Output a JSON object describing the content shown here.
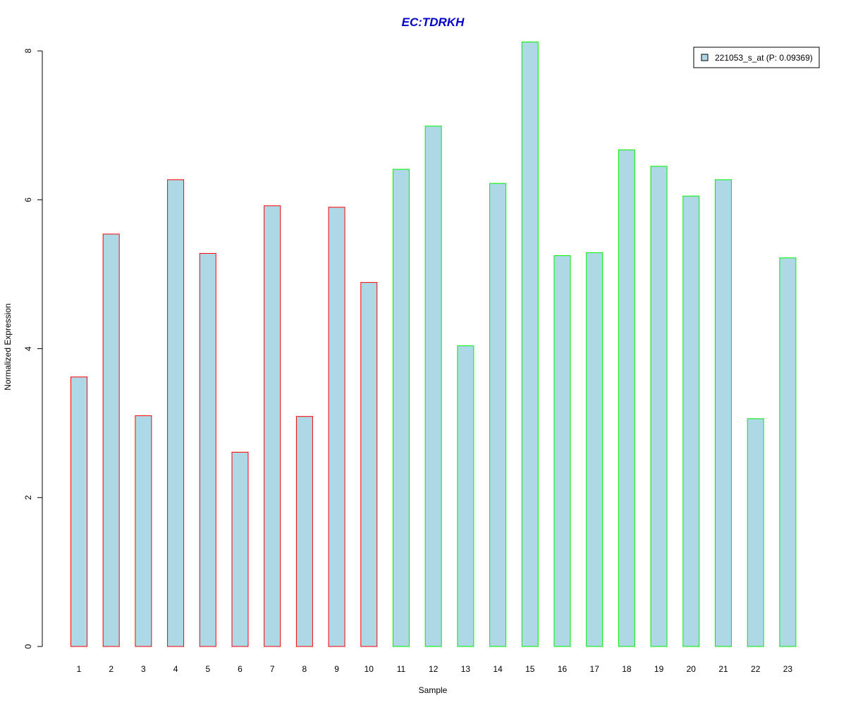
{
  "chart_data": {
    "type": "bar",
    "title": "EC:TDRKH",
    "xlabel": "Sample",
    "ylabel": "Normalized Expression",
    "categories": [
      "1",
      "2",
      "3",
      "4",
      "5",
      "6",
      "7",
      "8",
      "9",
      "10",
      "11",
      "12",
      "13",
      "14",
      "15",
      "16",
      "17",
      "18",
      "19",
      "20",
      "21",
      "22",
      "23"
    ],
    "series": [
      {
        "name": "221053_s_at (P: 0.09369)",
        "values": [
          3.62,
          5.54,
          3.1,
          6.27,
          5.28,
          2.61,
          5.92,
          3.09,
          5.9,
          4.89,
          6.41,
          6.99,
          4.04,
          6.22,
          8.12,
          5.25,
          5.29,
          6.67,
          6.45,
          6.05,
          6.27,
          3.06,
          5.22
        ]
      }
    ],
    "group_of_sample": [
      0,
      0,
      0,
      0,
      0,
      0,
      0,
      0,
      0,
      0,
      1,
      1,
      1,
      1,
      1,
      1,
      1,
      1,
      1,
      1,
      1,
      1,
      1
    ],
    "yticks": [
      0,
      2,
      4,
      6,
      8
    ],
    "ylim": [
      0,
      8.12
    ],
    "legend_position": "top-right",
    "grid": false,
    "colors": {
      "bar_fill": "#add8e6",
      "group_borders": [
        "#ff0000",
        "#00ee00"
      ],
      "title": "#0000cc",
      "axis": "#000000"
    }
  }
}
